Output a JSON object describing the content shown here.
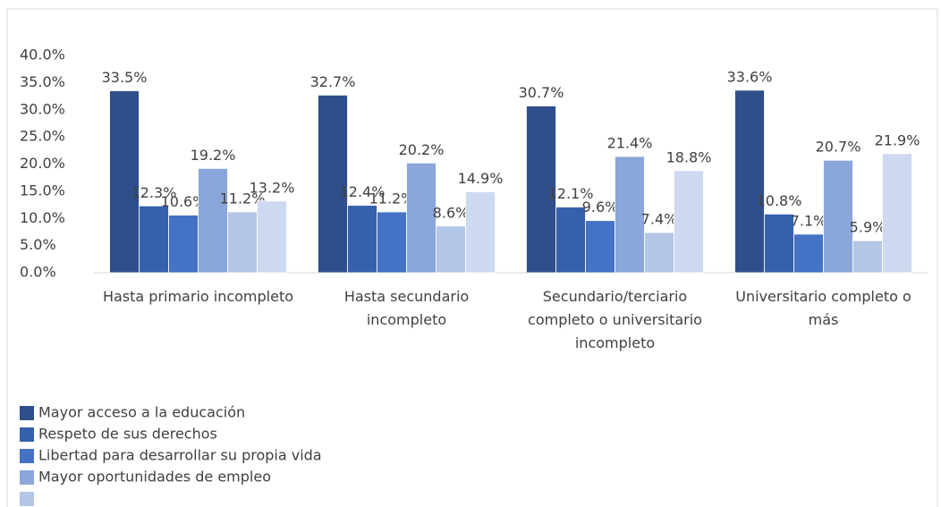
{
  "chart_data": {
    "type": "bar",
    "categories": [
      "Hasta primario incompleto",
      "Hasta secundario incompleto",
      "Secundario/terciario completo o universitario incompleto",
      "Universitario completo o más"
    ],
    "series": [
      {
        "name": "Mayor acceso a la educación",
        "color": "#2f4f8c",
        "values": [
          33.5,
          32.7,
          30.7,
          33.6
        ],
        "value_labels": [
          "33.5%",
          "32.7%",
          "30.7%",
          "33.6%"
        ]
      },
      {
        "name": "Respeto de sus derechos",
        "color": "#3560ac",
        "values": [
          12.3,
          12.4,
          12.1,
          10.8
        ],
        "value_labels": [
          "12.3%",
          "12.4%",
          "12.1%",
          "10.8%"
        ]
      },
      {
        "name": "Libertad para desarrollar su propia vida",
        "color": "#4472c4",
        "values": [
          10.6,
          11.2,
          9.6,
          7.1
        ],
        "value_labels": [
          "10.6%",
          "11.2%",
          "9.6%",
          "7.1%"
        ]
      },
      {
        "name": "Mayor oportunidades de empleo",
        "color": "#8aa6da",
        "values": [
          19.2,
          20.2,
          21.4,
          20.7
        ],
        "value_labels": [
          "19.2%",
          "20.2%",
          "21.4%",
          "20.7%"
        ]
      },
      {
        "color": "#b4c6e7",
        "values": [
          11.2,
          8.6,
          7.4,
          5.9
        ],
        "value_labels": [
          "11.2%",
          "8.6%",
          "7.4%",
          "5.9%"
        ]
      },
      {
        "color": "#cdd9f0",
        "values": [
          13.2,
          14.9,
          18.8,
          21.9
        ],
        "value_labels": [
          "13.2%",
          "14.9%",
          "18.8%",
          "21.9%"
        ]
      }
    ],
    "ylim": [
      0,
      40
    ],
    "yticks": [
      {
        "value": 0,
        "label": "0.0%"
      },
      {
        "value": 5,
        "label": "5.0%"
      },
      {
        "value": 10,
        "label": "10.0%"
      },
      {
        "value": 15,
        "label": "15.0%"
      },
      {
        "value": 20,
        "label": "20.0%"
      },
      {
        "value": 25,
        "label": "25.0%"
      },
      {
        "value": 30,
        "label": "30.0%"
      },
      {
        "value": 35,
        "label": "35.0%"
      },
      {
        "value": 40,
        "label": "40.0%"
      }
    ],
    "legend": "bottom"
  }
}
